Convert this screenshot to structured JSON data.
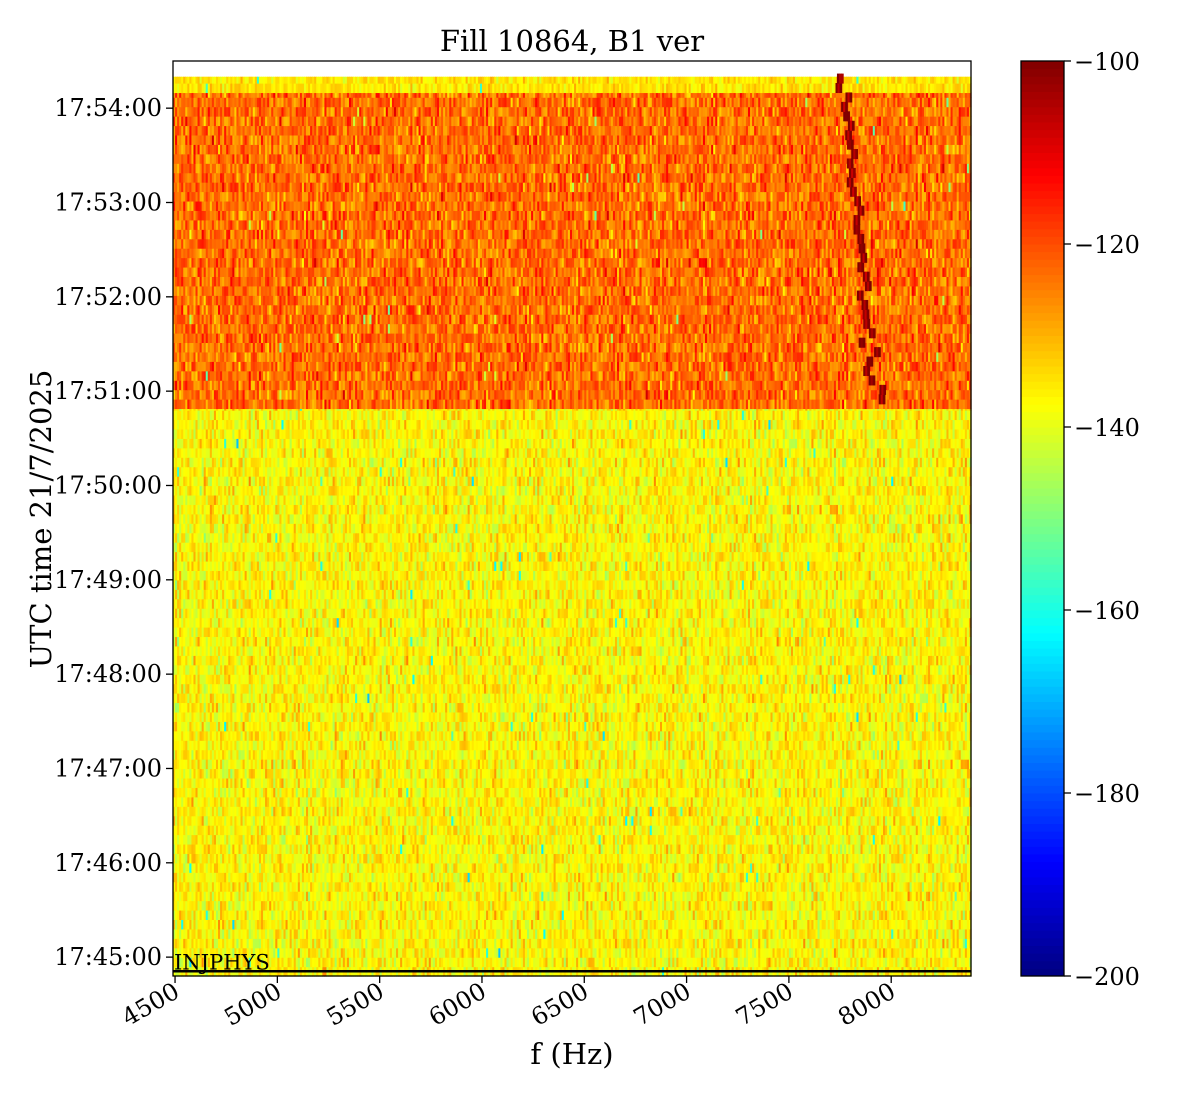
{
  "chart_data": {
    "type": "heatmap",
    "title": "Fill 10864, B1 ver",
    "xlabel": "f (Hz)",
    "ylabel": "UTC time 21/7/2025",
    "x_ticks": [
      {
        "value": 4500,
        "label": "4500"
      },
      {
        "value": 5000,
        "label": "5000"
      },
      {
        "value": 5500,
        "label": "5500"
      },
      {
        "value": 6000,
        "label": "6000"
      },
      {
        "value": 6500,
        "label": "6500"
      },
      {
        "value": 7000,
        "label": "7000"
      },
      {
        "value": 7500,
        "label": "7500"
      },
      {
        "value": 8000,
        "label": "8000"
      }
    ],
    "y_ticks": [
      {
        "value": "17:45:00",
        "label": "17:45:00"
      },
      {
        "value": "17:46:00",
        "label": "17:46:00"
      },
      {
        "value": "17:47:00",
        "label": "17:47:00"
      },
      {
        "value": "17:48:00",
        "label": "17:48:00"
      },
      {
        "value": "17:49:00",
        "label": "17:49:00"
      },
      {
        "value": "17:50:00",
        "label": "17:50:00"
      },
      {
        "value": "17:51:00",
        "label": "17:51:00"
      },
      {
        "value": "17:52:00",
        "label": "17:52:00"
      },
      {
        "value": "17:53:00",
        "label": "17:53:00"
      },
      {
        "value": "17:54:00",
        "label": "17:54:00"
      }
    ],
    "xlim": [
      4490,
      8390
    ],
    "ylim": [
      "17:44:48",
      "17:54:30"
    ],
    "colorbar": {
      "colormap": "jet",
      "vmin": -200,
      "vmax": -100,
      "ticks": [
        {
          "value": -100,
          "label": "−100"
        },
        {
          "value": -120,
          "label": "−120"
        },
        {
          "value": -140,
          "label": "−140"
        },
        {
          "value": -160,
          "label": "−160"
        },
        {
          "value": -180,
          "label": "−180"
        },
        {
          "value": -200,
          "label": "−200"
        }
      ]
    },
    "regions": [
      {
        "t_start": "17:44:48",
        "t_end": "17:50:49",
        "typical_level": -137,
        "spread": 4
      },
      {
        "t_start": "17:50:49",
        "t_end": "17:54:10",
        "typical_level": -123,
        "spread": 5
      },
      {
        "t_start": "17:54:10",
        "t_end": "17:54:20",
        "typical_level": -135,
        "spread": 3
      }
    ],
    "hot_lines": [
      {
        "f_start": 7760,
        "t_start": "17:54:20",
        "f_end": 7920,
        "t_end": "17:50:52",
        "level": -105
      }
    ],
    "annotation": {
      "text": "INJPHYS",
      "time": "17:44:51",
      "line_time": "17:44:51",
      "line_color": "#000000"
    }
  }
}
